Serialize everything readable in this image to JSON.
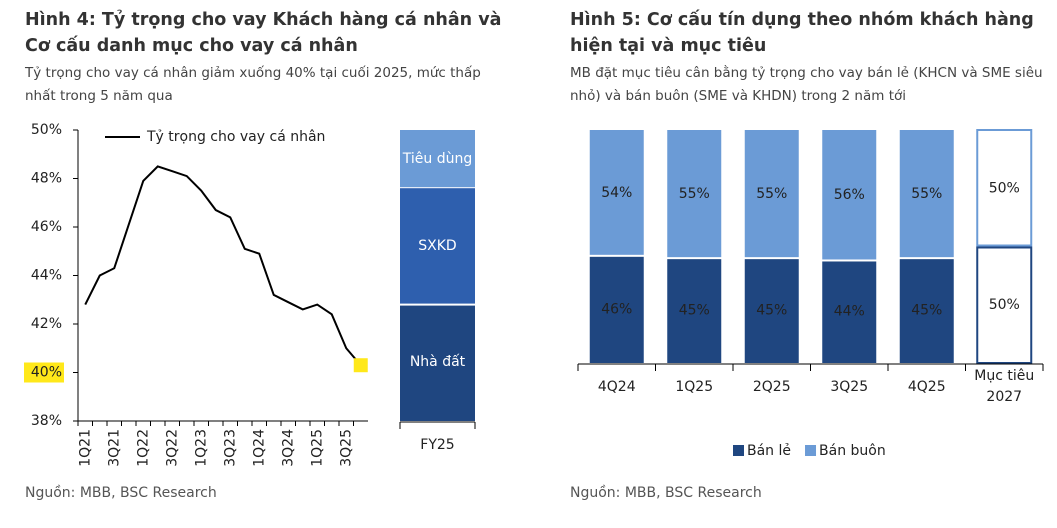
{
  "chart_data": [
    {
      "type": "line",
      "title": "Hình 4: Tỷ trọng cho vay Khách hàng cá nhân và Cơ cấu danh mục cho vay cá nhân",
      "subtitle": "Tỷ trọng cho vay cá nhân giảm xuống 40% tại cuối 2025, mức thấp nhất trong 5 năm qua",
      "source": "Nguồn: MBB, BSC Research",
      "categories": [
        "1Q21",
        null,
        "3Q21",
        null,
        "1Q22",
        null,
        "3Q22",
        null,
        "1Q23",
        null,
        "3Q23",
        null,
        "1Q24",
        null,
        "3Q24",
        null,
        "1Q25",
        null,
        "3Q25",
        null
      ],
      "series": [
        {
          "name": "Tỷ trọng cho vay cá nhân",
          "color": "#000000",
          "values": [
            42.8,
            44.0,
            44.3,
            46.1,
            47.9,
            48.5,
            48.3,
            48.1,
            47.5,
            46.7,
            46.4,
            45.1,
            44.9,
            43.2,
            42.9,
            42.6,
            42.8,
            42.4,
            41.0,
            40.3
          ]
        }
      ],
      "ylim": [
        38,
        50
      ],
      "yticks": [
        {
          "value": 38,
          "label": "38%"
        },
        {
          "value": 40,
          "label": "40%",
          "highlight": true
        },
        {
          "value": 42,
          "label": "42%"
        },
        {
          "value": 44,
          "label": "44%"
        },
        {
          "value": 46,
          "label": "46%"
        },
        {
          "value": 48,
          "label": "48%"
        },
        {
          "value": 50,
          "label": "50%"
        }
      ],
      "highlight_color": "#ffe81a",
      "end_marker": true,
      "legend": "top-left"
    },
    {
      "type": "bar",
      "stacked": true,
      "categories": [
        "FY25"
      ],
      "series": [
        {
          "name": "Nhà đất",
          "color": "#1f4680",
          "values": [
            40
          ]
        },
        {
          "name": "SXKD",
          "color": "#2e5fae",
          "values": [
            40
          ]
        },
        {
          "name": "Tiêu dùng",
          "color": "#6b9bd6",
          "values": [
            20
          ]
        }
      ],
      "ylim": [
        0,
        100
      ]
    },
    {
      "type": "bar",
      "stacked": true,
      "title": "Hình 5: Cơ cấu tín dụng theo nhóm khách hàng hiện tại và mục tiêu",
      "subtitle": "MB đặt mục tiêu cân bằng tỷ trọng cho vay bán lẻ (KHCN và SME siêu nhỏ) và bán buôn (SME và KHDN) trong 2 năm tới",
      "source": "Nguồn: MBB, BSC Research",
      "categories": [
        "4Q24",
        "1Q25",
        "2Q25",
        "3Q25",
        "4Q25",
        "Mục tiêu 2027"
      ],
      "series": [
        {
          "name": "Bán lẻ",
          "color": "#1f4680",
          "values": [
            46,
            45,
            45,
            44,
            45,
            50
          ],
          "value_labels": [
            "46%",
            "45%",
            "45%",
            "44%",
            "45%",
            "50%"
          ]
        },
        {
          "name": "Bán buôn",
          "color": "#6b9bd6",
          "values": [
            54,
            55,
            55,
            56,
            55,
            50
          ],
          "value_labels": [
            "54%",
            "55%",
            "55%",
            "56%",
            "55%",
            "50%"
          ]
        }
      ],
      "ylim": [
        0,
        100
      ],
      "outline_last": true,
      "legend": "bottom"
    }
  ]
}
